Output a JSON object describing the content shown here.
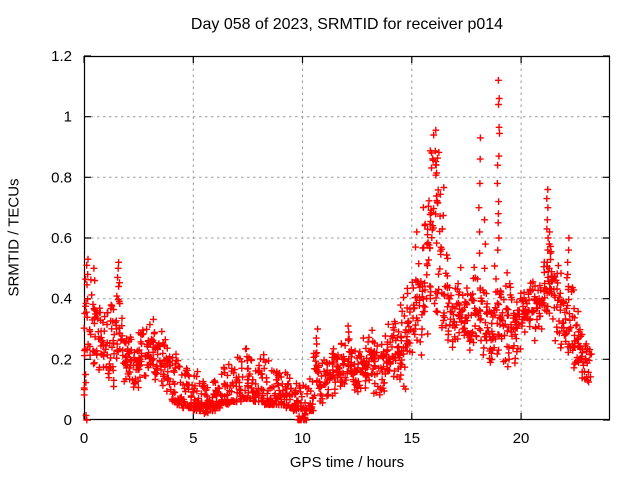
{
  "page": {
    "background": "#ffffff"
  },
  "chart_data": {
    "type": "scatter",
    "title": "Day 058 of 2023, SRMTID for receiver p014",
    "xlabel": "GPS time / hours",
    "ylabel": "SRMTID / TECUs",
    "xlim": [
      0,
      24.07
    ],
    "ylim": [
      0,
      1.2
    ],
    "xticks": {
      "values": [
        0,
        5,
        10,
        15,
        20
      ],
      "labels": [
        "0",
        "5",
        "10",
        "15",
        "20"
      ]
    },
    "yticks": {
      "values": [
        0,
        0.2,
        0.4,
        0.6,
        0.8,
        1,
        1.2
      ],
      "labels": [
        "0",
        "0.2",
        "0.4",
        "0.6",
        "0.8",
        "1",
        "1.2"
      ]
    },
    "grid": true,
    "legend": "none",
    "marker": {
      "shape": "plus",
      "size": 7,
      "color": "#ff0000"
    },
    "axis_color": "#000000",
    "grid_color": "#9b9b9b",
    "seed": 13,
    "bin_hours": 0.25,
    "bands_format": "[start_hour, y_min, y_max, n_points, dist] dist: u=uniform, t=triangular-centered, b=bottom-weighted",
    "bands": [
      [
        0.0,
        0.08,
        0.5,
        20,
        "u"
      ],
      [
        0.25,
        0.14,
        0.48,
        18,
        "t"
      ],
      [
        0.5,
        0.14,
        0.42,
        18,
        "t"
      ],
      [
        0.75,
        0.12,
        0.36,
        18,
        "t"
      ],
      [
        1.0,
        0.1,
        0.4,
        18,
        "t"
      ],
      [
        1.25,
        0.1,
        0.45,
        18,
        "t"
      ],
      [
        1.5,
        0.12,
        0.5,
        18,
        "t"
      ],
      [
        1.75,
        0.09,
        0.32,
        18,
        "t"
      ],
      [
        2.0,
        0.09,
        0.3,
        18,
        "t"
      ],
      [
        2.25,
        0.08,
        0.28,
        18,
        "t"
      ],
      [
        2.5,
        0.1,
        0.33,
        18,
        "t"
      ],
      [
        2.75,
        0.1,
        0.35,
        18,
        "t"
      ],
      [
        3.0,
        0.11,
        0.34,
        18,
        "t"
      ],
      [
        3.25,
        0.09,
        0.3,
        18,
        "t"
      ],
      [
        3.5,
        0.08,
        0.3,
        18,
        "t"
      ],
      [
        3.75,
        0.08,
        0.26,
        18,
        "t"
      ],
      [
        4.0,
        0.06,
        0.22,
        18,
        "b"
      ],
      [
        4.25,
        0.05,
        0.2,
        18,
        "b"
      ],
      [
        4.5,
        0.04,
        0.18,
        18,
        "b"
      ],
      [
        4.75,
        0.04,
        0.16,
        18,
        "b"
      ],
      [
        5.0,
        0.03,
        0.16,
        18,
        "b"
      ],
      [
        5.25,
        0.03,
        0.13,
        18,
        "b"
      ],
      [
        5.5,
        0.02,
        0.12,
        18,
        "b"
      ],
      [
        5.75,
        0.03,
        0.13,
        18,
        "b"
      ],
      [
        6.0,
        0.04,
        0.15,
        18,
        "b"
      ],
      [
        6.25,
        0.05,
        0.18,
        18,
        "b"
      ],
      [
        6.5,
        0.05,
        0.19,
        18,
        "b"
      ],
      [
        6.75,
        0.06,
        0.18,
        18,
        "b"
      ],
      [
        7.0,
        0.06,
        0.22,
        18,
        "b"
      ],
      [
        7.25,
        0.07,
        0.24,
        18,
        "b"
      ],
      [
        7.5,
        0.07,
        0.22,
        18,
        "b"
      ],
      [
        7.75,
        0.06,
        0.2,
        18,
        "b"
      ],
      [
        8.0,
        0.06,
        0.22,
        18,
        "b"
      ],
      [
        8.25,
        0.05,
        0.2,
        18,
        "b"
      ],
      [
        8.5,
        0.05,
        0.17,
        18,
        "b"
      ],
      [
        8.75,
        0.05,
        0.17,
        18,
        "b"
      ],
      [
        9.0,
        0.05,
        0.16,
        18,
        "b"
      ],
      [
        9.25,
        0.04,
        0.15,
        18,
        "b"
      ],
      [
        9.5,
        0.03,
        0.14,
        18,
        "b"
      ],
      [
        9.75,
        0.0,
        0.12,
        20,
        "b"
      ],
      [
        10.0,
        0.0,
        0.13,
        20,
        "b"
      ],
      [
        10.25,
        0.03,
        0.15,
        18,
        "b"
      ],
      [
        10.5,
        0.05,
        0.26,
        18,
        "t"
      ],
      [
        10.75,
        0.04,
        0.22,
        18,
        "t"
      ],
      [
        11.0,
        0.05,
        0.22,
        18,
        "t"
      ],
      [
        11.25,
        0.06,
        0.24,
        18,
        "t"
      ],
      [
        11.5,
        0.08,
        0.26,
        18,
        "t"
      ],
      [
        11.75,
        0.08,
        0.28,
        18,
        "t"
      ],
      [
        12.0,
        0.08,
        0.3,
        18,
        "t"
      ],
      [
        12.25,
        0.08,
        0.26,
        18,
        "t"
      ],
      [
        12.5,
        0.08,
        0.25,
        18,
        "t"
      ],
      [
        12.75,
        0.1,
        0.28,
        18,
        "t"
      ],
      [
        13.0,
        0.1,
        0.32,
        18,
        "t"
      ],
      [
        13.25,
        0.08,
        0.3,
        18,
        "t"
      ],
      [
        13.5,
        0.06,
        0.28,
        18,
        "t"
      ],
      [
        13.75,
        0.12,
        0.33,
        18,
        "t"
      ],
      [
        14.0,
        0.12,
        0.35,
        18,
        "t"
      ],
      [
        14.25,
        0.08,
        0.4,
        18,
        "t"
      ],
      [
        14.5,
        0.08,
        0.44,
        18,
        "t"
      ],
      [
        14.75,
        0.15,
        0.5,
        18,
        "t"
      ],
      [
        15.0,
        0.18,
        0.55,
        18,
        "t"
      ],
      [
        15.25,
        0.2,
        0.6,
        18,
        "t"
      ],
      [
        15.5,
        0.28,
        0.72,
        22,
        "u"
      ],
      [
        15.75,
        0.35,
        0.93,
        26,
        "u"
      ],
      [
        16.0,
        0.35,
        0.97,
        26,
        "u"
      ],
      [
        16.25,
        0.28,
        0.78,
        20,
        "u"
      ],
      [
        16.5,
        0.22,
        0.6,
        18,
        "t"
      ],
      [
        16.75,
        0.2,
        0.5,
        18,
        "t"
      ],
      [
        17.0,
        0.2,
        0.52,
        18,
        "t"
      ],
      [
        17.25,
        0.18,
        0.46,
        18,
        "t"
      ],
      [
        17.5,
        0.2,
        0.5,
        18,
        "t"
      ],
      [
        17.75,
        0.2,
        0.52,
        18,
        "t"
      ],
      [
        18.0,
        0.18,
        0.48,
        16,
        "t"
      ],
      [
        18.25,
        0.15,
        0.45,
        16,
        "t"
      ],
      [
        18.5,
        0.15,
        0.45,
        18,
        "t"
      ],
      [
        18.75,
        0.15,
        0.55,
        18,
        "t"
      ],
      [
        19.0,
        0.15,
        0.52,
        18,
        "t"
      ],
      [
        19.25,
        0.15,
        0.5,
        18,
        "t"
      ],
      [
        19.5,
        0.15,
        0.46,
        18,
        "t"
      ],
      [
        19.75,
        0.2,
        0.46,
        18,
        "t"
      ],
      [
        20.0,
        0.2,
        0.48,
        18,
        "t"
      ],
      [
        20.25,
        0.24,
        0.5,
        18,
        "t"
      ],
      [
        20.5,
        0.25,
        0.48,
        18,
        "t"
      ],
      [
        20.75,
        0.28,
        0.5,
        18,
        "t"
      ],
      [
        21.0,
        0.3,
        0.55,
        18,
        "t"
      ],
      [
        21.25,
        0.3,
        0.6,
        18,
        "t"
      ],
      [
        21.5,
        0.25,
        0.55,
        18,
        "t"
      ],
      [
        21.75,
        0.2,
        0.5,
        18,
        "t"
      ],
      [
        22.0,
        0.17,
        0.5,
        18,
        "t"
      ],
      [
        22.25,
        0.1,
        0.45,
        18,
        "t"
      ],
      [
        22.5,
        0.1,
        0.4,
        18,
        "t"
      ],
      [
        22.75,
        0.1,
        0.32,
        18,
        "t"
      ],
      [
        23.0,
        0.12,
        0.25,
        10,
        "t"
      ]
    ],
    "columns_format": "distinct spike columns read from the plot: {t: hour, ys: [TECU values]}",
    "columns": [
      {
        "t": 0.12,
        "ys": [
          0.0,
          0.015
        ]
      },
      {
        "t": 0.15,
        "ys": [
          0.48,
          0.51,
          0.53
        ]
      },
      {
        "t": 0.45,
        "ys": [
          0.46,
          0.5
        ]
      },
      {
        "t": 1.55,
        "ys": [
          0.44,
          0.47,
          0.5,
          0.52
        ]
      },
      {
        "t": 10.65,
        "ys": [
          0.27,
          0.3
        ]
      },
      {
        "t": 12.1,
        "ys": [
          0.29,
          0.31
        ]
      },
      {
        "t": 15.2,
        "ys": [
          0.57,
          0.62
        ]
      },
      {
        "t": 18.1,
        "ys": [
          0.55,
          0.62,
          0.7,
          0.78,
          0.86,
          0.93
        ]
      },
      {
        "t": 18.35,
        "ys": [
          0.42,
          0.5,
          0.58,
          0.66
        ]
      },
      {
        "t": 18.95,
        "ys": [
          0.56,
          0.6,
          0.65,
          0.68,
          0.72,
          0.78,
          0.84,
          0.87
        ]
      },
      {
        "t": 19.0,
        "ys": [
          0.945,
          0.965,
          1.04,
          1.06,
          1.12
        ]
      },
      {
        "t": 21.2,
        "ys": [
          0.47,
          0.52,
          0.56,
          0.6,
          0.63,
          0.66,
          0.7,
          0.73,
          0.76
        ]
      },
      {
        "t": 21.32,
        "ys": [
          0.45,
          0.5,
          0.55,
          0.58,
          0.62
        ]
      },
      {
        "t": 22.15,
        "ys": [
          0.44,
          0.48,
          0.52,
          0.56,
          0.6
        ]
      }
    ],
    "data_end_hour": 23.2,
    "max_point": {
      "t": 19.0,
      "y": 1.12
    }
  }
}
